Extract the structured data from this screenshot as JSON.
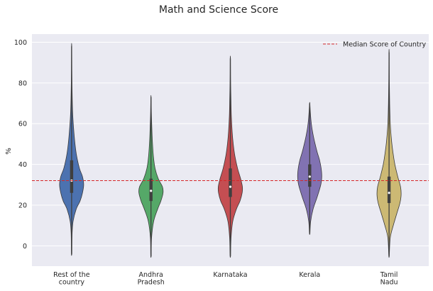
{
  "chart_data": {
    "type": "violin",
    "title": "Math and Science Score",
    "xlabel": "",
    "ylabel": "%",
    "ylim": [
      -10,
      104
    ],
    "yticks": [
      0,
      20,
      40,
      60,
      80,
      100
    ],
    "grid": true,
    "legend_position": "top-right",
    "reference_line": {
      "label": "Median Score of Country",
      "value": 32,
      "color": "#d62728",
      "style": "dashed"
    },
    "categories": [
      {
        "label_lines": [
          "Rest of the",
          "country"
        ],
        "color": "#4c72b0",
        "min": -4,
        "max": 98,
        "q1": 26,
        "median": 32,
        "q3": 42,
        "density": [
          [
            -4,
            0.02
          ],
          [
            6,
            0.04
          ],
          [
            12,
            0.12
          ],
          [
            18,
            0.38
          ],
          [
            22,
            0.7
          ],
          [
            26,
            0.9
          ],
          [
            30,
            1.0
          ],
          [
            34,
            0.9
          ],
          [
            38,
            0.65
          ],
          [
            44,
            0.42
          ],
          [
            50,
            0.28
          ],
          [
            58,
            0.16
          ],
          [
            66,
            0.08
          ],
          [
            76,
            0.04
          ],
          [
            86,
            0.02
          ],
          [
            98,
            0.01
          ]
        ]
      },
      {
        "label_lines": [
          "Andhra",
          "Pradesh"
        ],
        "color": "#55a868",
        "min": -5,
        "max": 73,
        "q1": 22,
        "median": 27,
        "q3": 33,
        "density": [
          [
            -5,
            0.02
          ],
          [
            4,
            0.05
          ],
          [
            12,
            0.22
          ],
          [
            18,
            0.55
          ],
          [
            22,
            0.82
          ],
          [
            26,
            1.0
          ],
          [
            29,
            0.95
          ],
          [
            33,
            0.6
          ],
          [
            38,
            0.34
          ],
          [
            44,
            0.2
          ],
          [
            52,
            0.11
          ],
          [
            60,
            0.06
          ],
          [
            66,
            0.03
          ],
          [
            73,
            0.01
          ]
        ]
      },
      {
        "label_lines": [
          "Karnataka"
        ],
        "color": "#c44e52",
        "min": -5,
        "max": 92,
        "q1": 24,
        "median": 29,
        "q3": 38,
        "density": [
          [
            -5,
            0.02
          ],
          [
            4,
            0.06
          ],
          [
            12,
            0.2
          ],
          [
            18,
            0.5
          ],
          [
            22,
            0.8
          ],
          [
            26,
            0.98
          ],
          [
            29,
            1.0
          ],
          [
            33,
            0.85
          ],
          [
            38,
            0.6
          ],
          [
            44,
            0.38
          ],
          [
            50,
            0.24
          ],
          [
            56,
            0.15
          ],
          [
            64,
            0.08
          ],
          [
            72,
            0.05
          ],
          [
            82,
            0.02
          ],
          [
            92,
            0.01
          ]
        ]
      },
      {
        "label_lines": [
          "Kerala"
        ],
        "color": "#8172b2",
        "min": 6,
        "max": 70,
        "q1": 29,
        "median": 34,
        "q3": 40,
        "density": [
          [
            6,
            0.02
          ],
          [
            12,
            0.08
          ],
          [
            18,
            0.28
          ],
          [
            24,
            0.62
          ],
          [
            30,
            0.92
          ],
          [
            34,
            1.0
          ],
          [
            38,
            0.95
          ],
          [
            42,
            0.82
          ],
          [
            46,
            0.62
          ],
          [
            50,
            0.45
          ],
          [
            54,
            0.3
          ],
          [
            58,
            0.18
          ],
          [
            62,
            0.1
          ],
          [
            66,
            0.05
          ],
          [
            70,
            0.01
          ]
        ]
      },
      {
        "label_lines": [
          "Tamil",
          "Nadu"
        ],
        "color": "#ccb974",
        "min": -5,
        "max": 95,
        "q1": 21,
        "median": 26,
        "q3": 34,
        "density": [
          [
            -5,
            0.02
          ],
          [
            4,
            0.1
          ],
          [
            10,
            0.35
          ],
          [
            16,
            0.65
          ],
          [
            21,
            0.9
          ],
          [
            25,
            1.0
          ],
          [
            29,
            0.95
          ],
          [
            34,
            0.72
          ],
          [
            40,
            0.48
          ],
          [
            46,
            0.32
          ],
          [
            52,
            0.2
          ],
          [
            60,
            0.1
          ],
          [
            70,
            0.05
          ],
          [
            82,
            0.02
          ],
          [
            95,
            0.01
          ]
        ]
      }
    ]
  }
}
